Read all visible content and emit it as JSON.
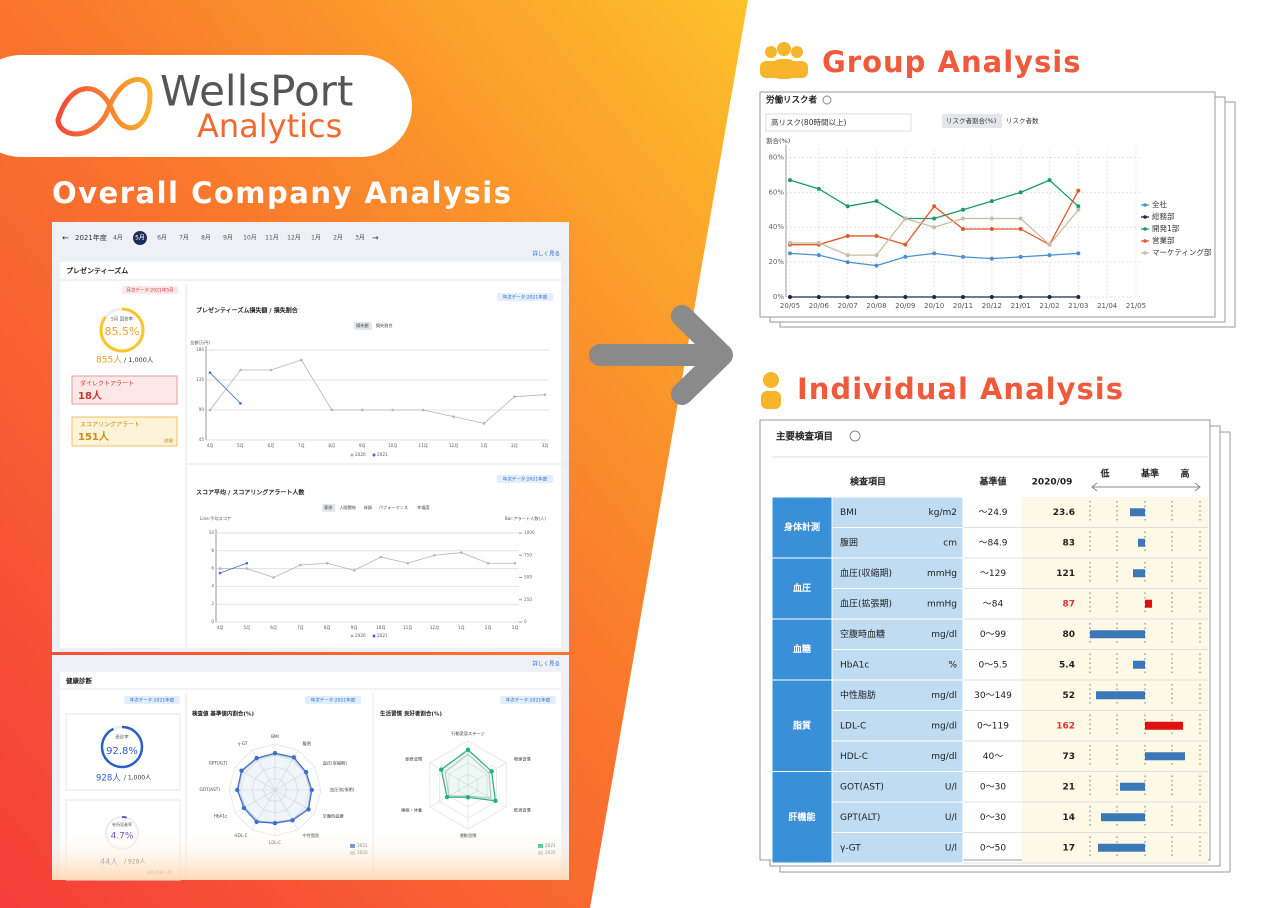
{
  "brand": {
    "name": "WellsPort",
    "sub": "Analytics"
  },
  "overall": {
    "title": "Overall Company Analysis",
    "nav": {
      "year": "2021年度",
      "months": [
        "4月",
        "5月",
        "6月",
        "7月",
        "8月",
        "9月",
        "10月",
        "11月",
        "12月",
        "1月",
        "2月",
        "3月"
      ]
    },
    "more": "詳しく見る",
    "presenteeism": {
      "heading": "プレゼンティーズム",
      "monthly_tag": "月次データ:2021年5月",
      "rate_label": "5月 回答率",
      "rate": {
        "value": 85.5,
        "label": "85.5%"
      },
      "count": "855人",
      "total": "/ 1,000人",
      "direct_alert": "ダイレクトアラート",
      "direct_count": "18人",
      "scoring_alert": "スコアリングアラート",
      "scoring_count": "151人",
      "detail": "詳細",
      "chart1": {
        "type": "line",
        "tag": "年次データ:2021年度",
        "title": "プレゼンティーズム損失額 / 損失割合",
        "toggles": [
          "損失額",
          "損失割合"
        ],
        "y_label": "金額(万円)",
        "categories": [
          "4月",
          "5月",
          "6月",
          "7月",
          "8月",
          "9月",
          "10月",
          "11月",
          "12月",
          "1月",
          "2月",
          "3月"
        ],
        "ylim": [
          45,
          180
        ],
        "yticks": [
          45,
          90,
          135,
          180
        ],
        "series": [
          {
            "name": "2020",
            "color": "#b4b4bc",
            "values": [
              90,
              150,
              150,
              165,
              90,
              90,
              90,
              90,
              80,
              70,
              110,
              113
            ]
          },
          {
            "name": "2021",
            "color": "#3a6fd0",
            "values": [
              146,
              100,
              null,
              null,
              null,
              null,
              null,
              null,
              null,
              null,
              null,
              null
            ]
          }
        ]
      },
      "chart2": {
        "type": "line",
        "tag": "年次データ:2021年度",
        "title": "スコア平均 / スコアリングアラート人数",
        "toggles": [
          "意欲",
          "人間関係",
          "体調",
          "パフォーマンス",
          "幸福度"
        ],
        "y_label": "Line:平均スコア",
        "y2_label": "Bar:アラート人数(人)",
        "categories": [
          "4月",
          "5月",
          "6月",
          "7月",
          "8月",
          "9月",
          "10月",
          "11月",
          "12月",
          "1月",
          "2月",
          "3月"
        ],
        "ylim": [
          0,
          10
        ],
        "yticks": [
          0,
          2,
          4,
          6,
          8,
          10
        ],
        "y2lim": [
          0,
          1000
        ],
        "y2ticks": [
          0,
          250,
          500,
          750,
          1000
        ],
        "series": [
          {
            "name": "2020",
            "color": "#b4b4bc",
            "values": [
              6,
              6,
              5,
              6.4,
              6.6,
              5.8,
              7.3,
              6.6,
              7.5,
              7.8,
              6.6,
              6.6
            ]
          },
          {
            "name": "2021",
            "color": "#3a6fd0",
            "values": [
              5.5,
              6.6,
              null,
              null,
              null,
              null,
              null,
              null,
              null,
              null,
              null,
              null
            ]
          }
        ]
      }
    },
    "health": {
      "heading": "健康診断",
      "tag": "年次データ:2021年度",
      "exam_label": "受診率",
      "exam_rate": {
        "value": 92.8,
        "label": "92.8%"
      },
      "exam_count": "928人",
      "exam_total": "/ 1,000人",
      "finding_label": "有所見者率",
      "finding_rate": {
        "value": 4.7,
        "label": "4.7%"
      },
      "finding_count": "44人",
      "finding_total": "/ 928人",
      "finding_link": "有所見者一覧",
      "radar1": {
        "type": "radar",
        "tag": "年次データ:2021年度",
        "title": "検査値 基準値内割合(%)",
        "axes": [
          "BMI",
          "腹囲",
          "血圧(収縮期)",
          "血圧(拡張期)",
          "空腹時血糖",
          "中性脂肪",
          "LDL-C",
          "HDL-C",
          "HbA1c",
          "GOT(AST)",
          "GPT(ALT)",
          "γ-GT"
        ],
        "rlim": [
          0,
          100
        ],
        "series": [
          {
            "name": "2021",
            "color": "#3a6fd0",
            "values": [
              80,
              82,
              78,
              80,
              84,
              76,
              72,
              80,
              78,
              82,
              84,
              80
            ]
          },
          {
            "name": "2020",
            "color": "#c8c8d0",
            "values": [
              78,
              80,
              76,
              78,
              82,
              74,
              70,
              78,
              76,
              80,
              82,
              78
            ]
          }
        ]
      },
      "radar2": {
        "type": "radar",
        "tag": "年次データ:2021年度",
        "title": "生活習慣 良好者割合(%)",
        "axes": [
          "行動変容ステージ",
          "喫煙習慣",
          "飲酒習慣",
          "運動習慣",
          "睡眠・休養",
          "朝食習慣"
        ],
        "rlim": [
          0,
          100
        ],
        "series": [
          {
            "name": "2021",
            "color": "#22b07a",
            "values": [
              80,
              62,
              72,
              28,
              55,
              70
            ]
          },
          {
            "name": "2020",
            "color": "#c8c8d0",
            "values": [
              70,
              55,
              60,
              25,
              50,
              60
            ]
          }
        ]
      }
    }
  },
  "group": {
    "title": "Group Analysis",
    "chart": {
      "type": "line",
      "title": "労働リスク者",
      "select": "高リスク(80時間以上)",
      "toggles": [
        "リスク者割合(%)",
        "リスク者数"
      ],
      "y_label": "割合(%)",
      "categories": [
        "20/05",
        "20/06",
        "20/07",
        "20/08",
        "20/09",
        "20/10",
        "20/11",
        "20/12",
        "21/01",
        "21/02",
        "21/03",
        "21/04",
        "21/05"
      ],
      "ylim": [
        0,
        85
      ],
      "yticks": [
        {
          "value": 0,
          "label": "0%"
        },
        {
          "value": 20,
          "label": "20%"
        },
        {
          "value": 40,
          "label": "40%"
        },
        {
          "value": 60,
          "label": "60%"
        },
        {
          "value": 80,
          "label": "80%"
        }
      ],
      "series": [
        {
          "name": "全社",
          "color": "#4a90d0",
          "values": [
            25,
            24,
            20,
            18,
            23,
            25,
            23,
            22,
            23,
            24,
            25,
            null,
            null
          ]
        },
        {
          "name": "総務部",
          "color": "#1a2a4a",
          "values": [
            0,
            0,
            0,
            0,
            0,
            0,
            0,
            0,
            0,
            0,
            0,
            null,
            null
          ]
        },
        {
          "name": "開発1部",
          "color": "#1a9a6a",
          "values": [
            67,
            62,
            52,
            55,
            45,
            45,
            50,
            55,
            60,
            67,
            52,
            null,
            null
          ]
        },
        {
          "name": "営業部",
          "color": "#e05a2a",
          "values": [
            30,
            30,
            35,
            35,
            30,
            52,
            39,
            39,
            39,
            30,
            61,
            null,
            null
          ]
        },
        {
          "name": "マーケティング部",
          "color": "#cbbba3",
          "values": [
            31,
            31,
            24,
            24,
            45,
            40,
            45,
            45,
            45,
            30,
            50,
            null,
            null
          ]
        }
      ]
    }
  },
  "individual": {
    "title": "Individual Analysis",
    "table": {
      "title": "主要検査項目",
      "headers": [
        "検査項目",
        "基準値",
        "2020/09"
      ],
      "scale": [
        "低",
        "基準",
        "高"
      ],
      "groups": [
        {
          "name": "身体計測",
          "rows": [
            [
              "BMI",
              "kg/m2",
              "～24.9",
              23.6
            ],
            [
              "腹囲",
              "cm",
              "～84.9",
              83
            ]
          ]
        },
        {
          "name": "血圧",
          "rows": [
            [
              "血圧(収縮期)",
              "mmHg",
              "～129",
              121
            ],
            [
              "血圧(拡張期)",
              "mmHg",
              "～84",
              87
            ]
          ]
        },
        {
          "name": "血糖",
          "rows": [
            [
              "空腹時血糖",
              "mg/dl",
              "0～99",
              80
            ],
            [
              "HbA1c",
              "%",
              "0～5.5",
              5.4
            ]
          ]
        },
        {
          "name": "脂質",
          "rows": [
            [
              "中性脂肪",
              "mg/dl",
              "30～149",
              52
            ],
            [
              "LDL-C",
              "mg/dl",
              "0～119",
              162
            ],
            [
              "HDL-C",
              "mg/dl",
              "40～",
              73
            ]
          ]
        },
        {
          "name": "肝機能",
          "rows": [
            [
              "GOT(AST)",
              "U/l",
              "0～30",
              21
            ],
            [
              "GPT(ALT)",
              "U/l",
              "0～30",
              14
            ],
            [
              "γ-GT",
              "U/l",
              "0～50",
              17
            ]
          ]
        }
      ]
    }
  }
}
